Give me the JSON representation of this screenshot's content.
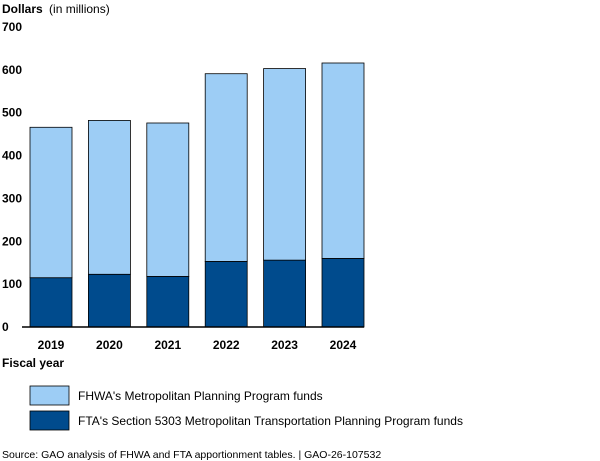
{
  "chart_data": {
    "type": "bar",
    "stacked": true,
    "ylabel_bold": "Dollars",
    "ylabel_rest": "(in millions)",
    "xlabel": "Fiscal year",
    "ylim": [
      0,
      700
    ],
    "yticks": [
      "0",
      "100",
      "200",
      "300",
      "400",
      "500",
      "600",
      "700"
    ],
    "categories": [
      "2019",
      "2020",
      "2021",
      "2022",
      "2023",
      "2024"
    ],
    "series": [
      {
        "name": "FTA's Section 5303 Metropolitan Transportation Planning Program funds",
        "color": "#004b8d",
        "values": [
          115,
          123,
          118,
          153,
          156,
          160
        ]
      },
      {
        "name": "FHWA's Metropolitan Planning Program funds",
        "color": "#9dcdf5",
        "values": [
          351,
          359,
          358,
          438,
          447,
          456
        ]
      }
    ],
    "legend_order": [
      1,
      0
    ],
    "legend_position": "bottom",
    "grid": false
  },
  "source": "Source: GAO analysis of FHWA and FTA apportionment tables.  |  GAO-26-107532"
}
